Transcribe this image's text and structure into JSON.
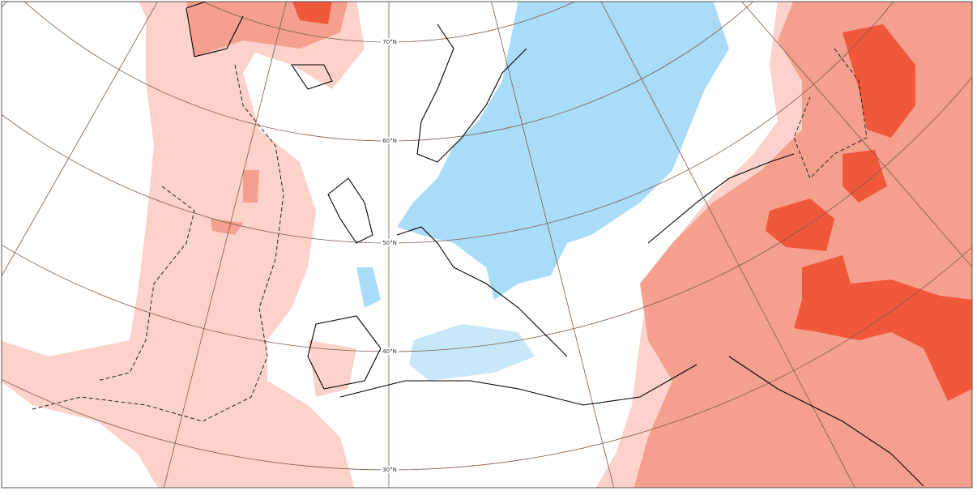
{
  "graticule": {
    "latitude_labels": [
      "70°N",
      "60°N",
      "50°N",
      "40°N",
      "30°N"
    ]
  }
}
